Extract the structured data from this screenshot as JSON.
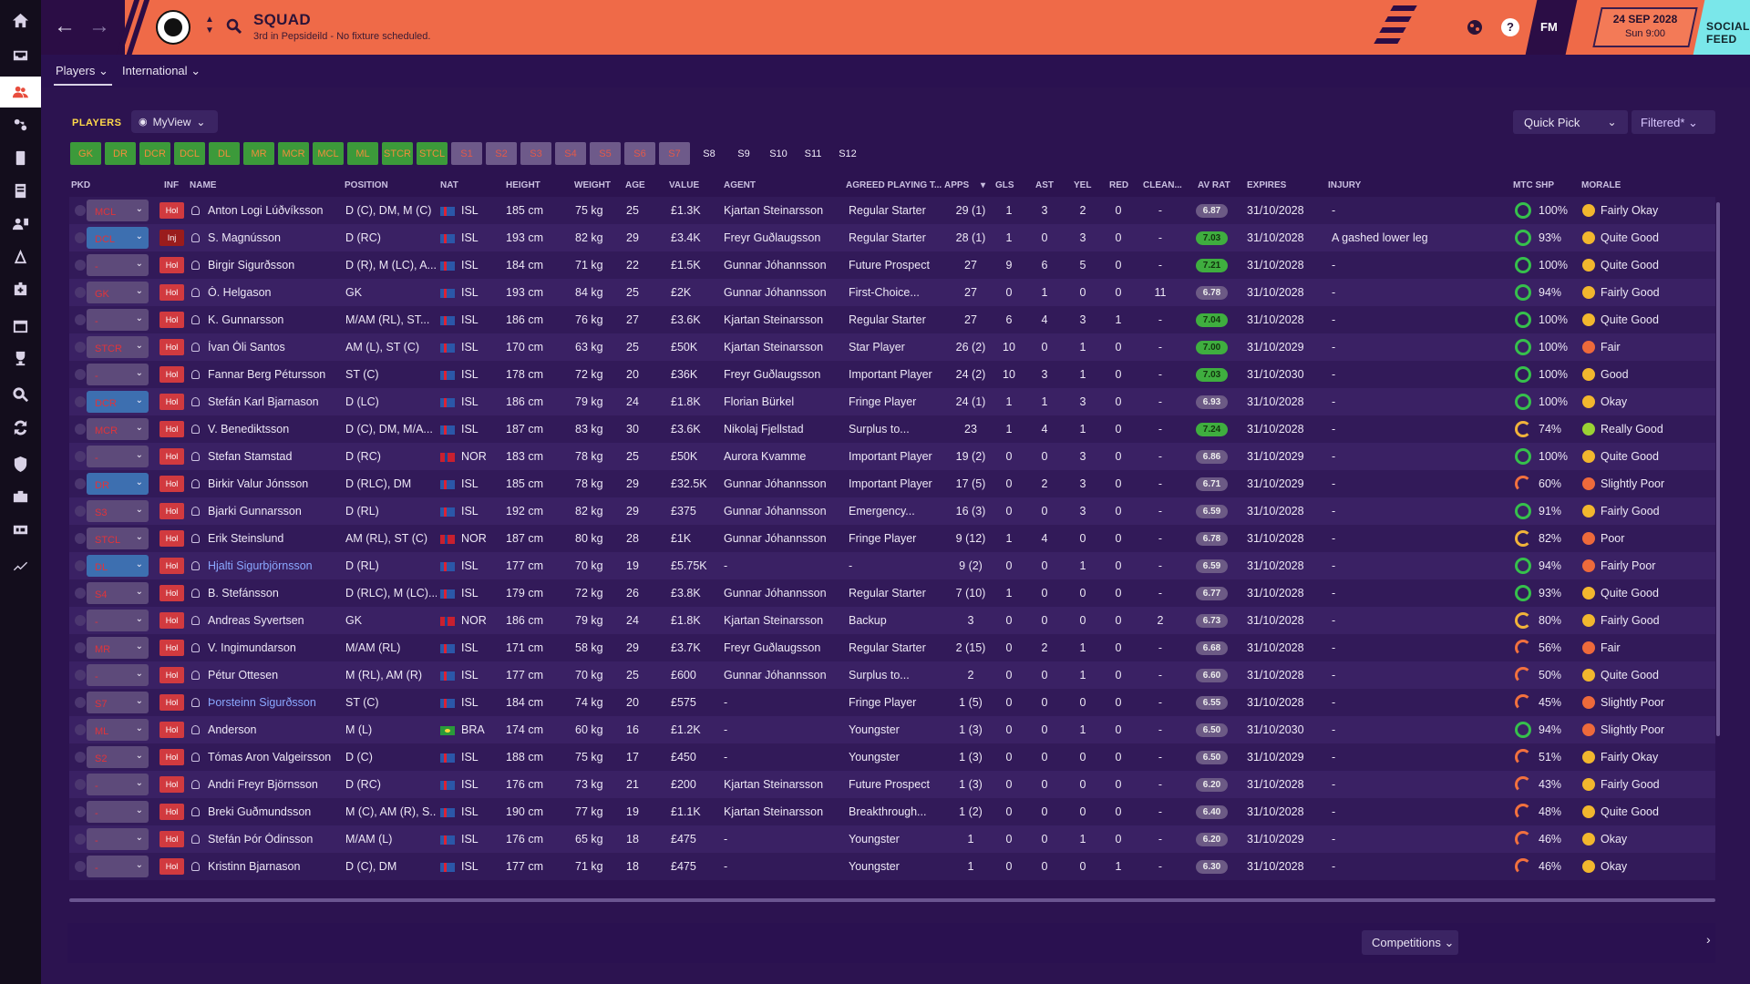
{
  "nav": {
    "back": "back",
    "forward": "forward"
  },
  "header": {
    "title": "SQUAD",
    "subtitle": "3rd in Pepsideild - No fixture scheduled.",
    "date": "24 SEP 2028",
    "day_time": "Sun 9:00",
    "fm": "FM",
    "help": "?",
    "social_feed": "SOCIAL FEED"
  },
  "subnav": {
    "players": "Players",
    "international": "International"
  },
  "toolbar": {
    "players_label": "PLAYERS",
    "view": "MyView",
    "quick_pick": "Quick Pick",
    "filter": "Filtered*"
  },
  "slots": [
    "GK",
    "DR",
    "DCR",
    "DCL",
    "DL",
    "MR",
    "MCR",
    "MCL",
    "ML",
    "STCR",
    "STCL",
    "S1",
    "S2",
    "S3",
    "S4",
    "S5",
    "S6",
    "S7",
    "S8",
    "S9",
    "S10",
    "S11",
    "S12"
  ],
  "columns": {
    "pkd": "PKD",
    "inf": "INF",
    "name": "NAME",
    "position": "POSITION",
    "nat": "NAT",
    "height": "HEIGHT",
    "weight": "WEIGHT",
    "age": "AGE",
    "value": "VALUE",
    "agent": "AGENT",
    "role": "AGREED PLAYING T...",
    "apps": "APPS",
    "gls": "GLS",
    "ast": "AST",
    "yel": "YEL",
    "red": "RED",
    "clean": "CLEAN...",
    "avrat": "AV RAT",
    "expires": "EXPIRES",
    "injury": "INJURY",
    "mtc": "MTC SHP",
    "morale": "MORALE"
  },
  "players": [
    {
      "sel": "MCL",
      "status": "Hol",
      "name": "Anton Logi Lúðvíksson",
      "pos": "D (C), DM, M (C)",
      "nat": "ISL",
      "height": "185 cm",
      "weight": "75 kg",
      "age": "25",
      "value": "£1.3K",
      "agent": "Kjartan Steinarsson",
      "role": "Regular Starter",
      "apps": "29 (1)",
      "gls": "1",
      "ast": "3",
      "yel": "2",
      "red": "0",
      "clean": "-",
      "rat": "6.87",
      "expires": "31/10/2028",
      "injury": "-",
      "mtc": "100%",
      "morale": "Fairly Okay"
    },
    {
      "sel": "DCL",
      "status": "Inj",
      "name": "S. Magnússon",
      "pos": "D (RC)",
      "nat": "ISL",
      "height": "193 cm",
      "weight": "82 kg",
      "age": "29",
      "value": "£3.4K",
      "agent": "Freyr Guðlaugsson",
      "role": "Regular Starter",
      "apps": "28 (1)",
      "gls": "1",
      "ast": "0",
      "yel": "3",
      "red": "0",
      "clean": "-",
      "rat": "7.03",
      "expires": "31/10/2028",
      "injury": "A gashed lower leg",
      "mtc": "93%",
      "morale": "Quite Good"
    },
    {
      "sel": "-",
      "status": "Hol",
      "name": "Birgir Sigurðsson",
      "pos": "D (R), M (LC), A...",
      "nat": "ISL",
      "height": "184 cm",
      "weight": "71 kg",
      "age": "22",
      "value": "£1.5K",
      "agent": "Gunnar Jóhannsson",
      "role": "Future Prospect",
      "apps": "27",
      "gls": "9",
      "ast": "6",
      "yel": "5",
      "red": "0",
      "clean": "-",
      "rat": "7.21",
      "expires": "31/10/2028",
      "injury": "-",
      "mtc": "100%",
      "morale": "Quite Good"
    },
    {
      "sel": "GK",
      "status": "Hol",
      "name": "Ó. Helgason",
      "pos": "GK",
      "nat": "ISL",
      "height": "193 cm",
      "weight": "84 kg",
      "age": "25",
      "value": "£2K",
      "agent": "Gunnar Jóhannsson",
      "role": "First-Choice...",
      "apps": "27",
      "gls": "0",
      "ast": "1",
      "yel": "0",
      "red": "0",
      "clean": "11",
      "rat": "6.78",
      "expires": "31/10/2028",
      "injury": "-",
      "mtc": "94%",
      "morale": "Fairly Good"
    },
    {
      "sel": "-",
      "status": "Hol",
      "name": "K. Gunnarsson",
      "pos": "M/AM (RL), ST...",
      "nat": "ISL",
      "height": "186 cm",
      "weight": "76 kg",
      "age": "27",
      "value": "£3.6K",
      "agent": "Kjartan Steinarsson",
      "role": "Regular Starter",
      "apps": "27",
      "gls": "6",
      "ast": "4",
      "yel": "3",
      "red": "1",
      "clean": "-",
      "rat": "7.04",
      "expires": "31/10/2028",
      "injury": "-",
      "mtc": "100%",
      "morale": "Quite Good"
    },
    {
      "sel": "STCR",
      "status": "Hol",
      "name": "Ívan Óli Santos",
      "pos": "AM (L), ST (C)",
      "nat": "ISL",
      "height": "170 cm",
      "weight": "63 kg",
      "age": "25",
      "value": "£50K",
      "agent": "Kjartan Steinarsson",
      "role": "Star Player",
      "apps": "26 (2)",
      "gls": "10",
      "ast": "0",
      "yel": "1",
      "red": "0",
      "clean": "-",
      "rat": "7.00",
      "expires": "31/10/2029",
      "injury": "-",
      "mtc": "100%",
      "morale": "Fair"
    },
    {
      "sel": "-",
      "status": "Hol",
      "name": "Fannar Berg Pétursson",
      "pos": "ST (C)",
      "nat": "ISL",
      "height": "178 cm",
      "weight": "72 kg",
      "age": "20",
      "value": "£36K",
      "agent": "Freyr Guðlaugsson",
      "role": "Important Player",
      "apps": "24 (2)",
      "gls": "10",
      "ast": "3",
      "yel": "1",
      "red": "0",
      "clean": "-",
      "rat": "7.03",
      "expires": "31/10/2030",
      "injury": "-",
      "mtc": "100%",
      "morale": "Good"
    },
    {
      "sel": "DCR",
      "status": "Hol",
      "name": "Stefán Karl Bjarnason",
      "pos": "D (LC)",
      "nat": "ISL",
      "height": "186 cm",
      "weight": "79 kg",
      "age": "24",
      "value": "£1.8K",
      "agent": "Florian Bürkel",
      "role": "Fringe Player",
      "apps": "24 (1)",
      "gls": "1",
      "ast": "1",
      "yel": "3",
      "red": "0",
      "clean": "-",
      "rat": "6.93",
      "expires": "31/10/2028",
      "injury": "-",
      "mtc": "100%",
      "morale": "Okay"
    },
    {
      "sel": "MCR",
      "status": "Hol",
      "name": "V. Benediktsson",
      "pos": "D (C), DM, M/A...",
      "nat": "ISL",
      "height": "187 cm",
      "weight": "83 kg",
      "age": "30",
      "value": "£3.6K",
      "agent": "Nikolaj Fjellstad",
      "role": "Surplus to...",
      "apps": "23",
      "gls": "1",
      "ast": "4",
      "yel": "1",
      "red": "0",
      "clean": "-",
      "rat": "7.24",
      "expires": "31/10/2028",
      "injury": "-",
      "mtc": "74%",
      "morale": "Really Good"
    },
    {
      "sel": "-",
      "status": "Hol",
      "name": "Stefan Stamstad",
      "pos": "D (RC)",
      "nat": "NOR",
      "height": "183 cm",
      "weight": "78 kg",
      "age": "25",
      "value": "£50K",
      "agent": "Aurora Kvamme",
      "role": "Important Player",
      "apps": "19 (2)",
      "gls": "0",
      "ast": "0",
      "yel": "3",
      "red": "0",
      "clean": "-",
      "rat": "6.86",
      "expires": "31/10/2029",
      "injury": "-",
      "mtc": "100%",
      "morale": "Quite Good"
    },
    {
      "sel": "DR",
      "status": "Hol",
      "name": "Birkir Valur Jónsson",
      "pos": "D (RLC), DM",
      "nat": "ISL",
      "height": "185 cm",
      "weight": "78 kg",
      "age": "29",
      "value": "£32.5K",
      "agent": "Gunnar Jóhannsson",
      "role": "Important Player",
      "apps": "17 (5)",
      "gls": "0",
      "ast": "2",
      "yel": "3",
      "red": "0",
      "clean": "-",
      "rat": "6.71",
      "expires": "31/10/2029",
      "injury": "-",
      "mtc": "60%",
      "morale": "Slightly Poor"
    },
    {
      "sel": "S3",
      "status": "Hol",
      "name": "Bjarki Gunnarsson",
      "pos": "D (RL)",
      "nat": "ISL",
      "height": "192 cm",
      "weight": "82 kg",
      "age": "29",
      "value": "£375",
      "agent": "Gunnar Jóhannsson",
      "role": "Emergency...",
      "apps": "16 (3)",
      "gls": "0",
      "ast": "0",
      "yel": "3",
      "red": "0",
      "clean": "-",
      "rat": "6.59",
      "expires": "31/10/2028",
      "injury": "-",
      "mtc": "91%",
      "morale": "Fairly Good"
    },
    {
      "sel": "STCL",
      "status": "Hol",
      "name": "Erik Steinslund",
      "pos": "AM (RL), ST (C)",
      "nat": "NOR",
      "height": "187 cm",
      "weight": "80 kg",
      "age": "28",
      "value": "£1K",
      "agent": "Gunnar Jóhannsson",
      "role": "Fringe Player",
      "apps": "9 (12)",
      "gls": "1",
      "ast": "4",
      "yel": "0",
      "red": "0",
      "clean": "-",
      "rat": "6.78",
      "expires": "31/10/2028",
      "injury": "-",
      "mtc": "82%",
      "morale": "Poor"
    },
    {
      "sel": "DL",
      "status": "Hol",
      "name": "Hjalti Sigurbjörnsson",
      "pos": "D (RL)",
      "nat": "ISL",
      "height": "177 cm",
      "weight": "70 kg",
      "age": "19",
      "value": "£5.75K",
      "agent": "-",
      "role": "-",
      "apps": "9 (2)",
      "gls": "0",
      "ast": "0",
      "yel": "1",
      "red": "0",
      "clean": "-",
      "rat": "6.59",
      "expires": "31/10/2028",
      "injury": "-",
      "mtc": "94%",
      "morale": "Fairly Poor"
    },
    {
      "sel": "S4",
      "status": "Hol",
      "name": "B. Stefánsson",
      "pos": "D (RLC), M (LC)...",
      "nat": "ISL",
      "height": "179 cm",
      "weight": "72 kg",
      "age": "26",
      "value": "£3.8K",
      "agent": "Gunnar Jóhannsson",
      "role": "Regular Starter",
      "apps": "7 (10)",
      "gls": "1",
      "ast": "0",
      "yel": "0",
      "red": "0",
      "clean": "-",
      "rat": "6.77",
      "expires": "31/10/2028",
      "injury": "-",
      "mtc": "93%",
      "morale": "Quite Good"
    },
    {
      "sel": "-",
      "status": "Hol",
      "name": "Andreas Syvertsen",
      "pos": "GK",
      "nat": "NOR",
      "height": "186 cm",
      "weight": "79 kg",
      "age": "24",
      "value": "£1.8K",
      "agent": "Kjartan Steinarsson",
      "role": "Backup",
      "apps": "3",
      "gls": "0",
      "ast": "0",
      "yel": "0",
      "red": "0",
      "clean": "2",
      "rat": "6.73",
      "expires": "31/10/2028",
      "injury": "-",
      "mtc": "80%",
      "morale": "Fairly Good"
    },
    {
      "sel": "MR",
      "status": "Hol",
      "name": "V. Ingimundarson",
      "pos": "M/AM (RL)",
      "nat": "ISL",
      "height": "171 cm",
      "weight": "58 kg",
      "age": "29",
      "value": "£3.7K",
      "agent": "Freyr Guðlaugsson",
      "role": "Regular Starter",
      "apps": "2 (15)",
      "gls": "0",
      "ast": "2",
      "yel": "1",
      "red": "0",
      "clean": "-",
      "rat": "6.68",
      "expires": "31/10/2028",
      "injury": "-",
      "mtc": "56%",
      "morale": "Fair"
    },
    {
      "sel": "-",
      "status": "Hol",
      "name": "Pétur Ottesen",
      "pos": "M (RL), AM (R)",
      "nat": "ISL",
      "height": "177 cm",
      "weight": "70 kg",
      "age": "25",
      "value": "£600",
      "agent": "Gunnar Jóhannsson",
      "role": "Surplus to...",
      "apps": "2",
      "gls": "0",
      "ast": "0",
      "yel": "1",
      "red": "0",
      "clean": "-",
      "rat": "6.60",
      "expires": "31/10/2028",
      "injury": "-",
      "mtc": "50%",
      "morale": "Quite Good"
    },
    {
      "sel": "S7",
      "status": "Hol",
      "name": "Þorsteinn Sigurðsson",
      "pos": "ST (C)",
      "nat": "ISL",
      "height": "184 cm",
      "weight": "74 kg",
      "age": "20",
      "value": "£575",
      "agent": "-",
      "role": "Fringe Player",
      "apps": "1 (5)",
      "gls": "0",
      "ast": "0",
      "yel": "0",
      "red": "0",
      "clean": "-",
      "rat": "6.55",
      "expires": "31/10/2028",
      "injury": "-",
      "mtc": "45%",
      "morale": "Slightly Poor"
    },
    {
      "sel": "ML",
      "status": "Hol",
      "name": "Anderson",
      "pos": "M (L)",
      "nat": "BRA",
      "height": "174 cm",
      "weight": "60 kg",
      "age": "16",
      "value": "£1.2K",
      "agent": "-",
      "role": "Youngster",
      "apps": "1 (3)",
      "gls": "0",
      "ast": "0",
      "yel": "1",
      "red": "0",
      "clean": "-",
      "rat": "6.50",
      "expires": "31/10/2030",
      "injury": "-",
      "mtc": "94%",
      "morale": "Slightly Poor"
    },
    {
      "sel": "S2",
      "status": "Hol",
      "name": "Tómas Aron Valgeirsson",
      "pos": "D (C)",
      "nat": "ISL",
      "height": "188 cm",
      "weight": "75 kg",
      "age": "17",
      "value": "£450",
      "agent": "-",
      "role": "Youngster",
      "apps": "1 (3)",
      "gls": "0",
      "ast": "0",
      "yel": "0",
      "red": "0",
      "clean": "-",
      "rat": "6.50",
      "expires": "31/10/2029",
      "injury": "-",
      "mtc": "51%",
      "morale": "Fairly Okay"
    },
    {
      "sel": "-",
      "status": "Hol",
      "name": "Andri Freyr Björnsson",
      "pos": "D (RC)",
      "nat": "ISL",
      "height": "176 cm",
      "weight": "73 kg",
      "age": "21",
      "value": "£200",
      "agent": "Kjartan Steinarsson",
      "role": "Future Prospect",
      "apps": "1 (3)",
      "gls": "0",
      "ast": "0",
      "yel": "0",
      "red": "0",
      "clean": "-",
      "rat": "6.20",
      "expires": "31/10/2028",
      "injury": "-",
      "mtc": "43%",
      "morale": "Fairly Good"
    },
    {
      "sel": "-",
      "status": "Hol",
      "name": "Breki Guðmundsson",
      "pos": "M (C), AM (R), S...",
      "nat": "ISL",
      "height": "190 cm",
      "weight": "77 kg",
      "age": "19",
      "value": "£1.1K",
      "agent": "Kjartan Steinarsson",
      "role": "Breakthrough...",
      "apps": "1 (2)",
      "gls": "0",
      "ast": "0",
      "yel": "0",
      "red": "0",
      "clean": "-",
      "rat": "6.40",
      "expires": "31/10/2028",
      "injury": "-",
      "mtc": "48%",
      "morale": "Quite Good"
    },
    {
      "sel": "-",
      "status": "Hol",
      "name": "Stefán Þór Ódinsson",
      "pos": "M/AM (L)",
      "nat": "ISL",
      "height": "176 cm",
      "weight": "65 kg",
      "age": "18",
      "value": "£475",
      "agent": "-",
      "role": "Youngster",
      "apps": "1",
      "gls": "0",
      "ast": "0",
      "yel": "1",
      "red": "0",
      "clean": "-",
      "rat": "6.20",
      "expires": "31/10/2029",
      "injury": "-",
      "mtc": "46%",
      "morale": "Okay"
    },
    {
      "sel": "-",
      "status": "Hol",
      "name": "Kristinn Bjarnason",
      "pos": "D (C), DM",
      "nat": "ISL",
      "height": "177 cm",
      "weight": "71 kg",
      "age": "18",
      "value": "£475",
      "agent": "-",
      "role": "Youngster",
      "apps": "1",
      "gls": "0",
      "ast": "0",
      "yel": "0",
      "red": "1",
      "clean": "-",
      "rat": "6.30",
      "expires": "31/10/2028",
      "injury": "-",
      "mtc": "46%",
      "morale": "Okay"
    }
  ],
  "bottom": {
    "competitions": "Competitions"
  }
}
